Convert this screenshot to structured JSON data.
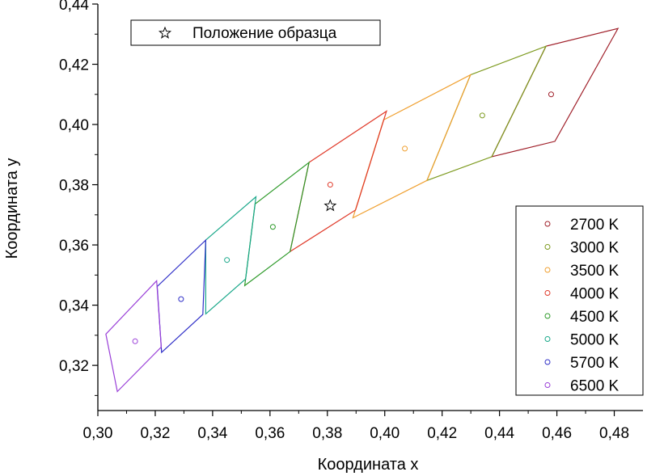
{
  "chart_data": {
    "type": "scatter",
    "xlabel": "Координата x",
    "ylabel": "Координата y",
    "xlim": [
      0.3,
      0.49
    ],
    "ylim": [
      0.305,
      0.44
    ],
    "x_ticks": [
      0.3,
      0.32,
      0.34,
      0.36,
      0.38,
      0.4,
      0.42,
      0.44,
      0.46,
      0.48
    ],
    "x_tick_labels": [
      "0,30",
      "0,32",
      "0,34",
      "0,36",
      "0,38",
      "0,40",
      "0,42",
      "0,44",
      "0,46",
      "0,48"
    ],
    "y_ticks": [
      0.32,
      0.34,
      0.36,
      0.38,
      0.4,
      0.42,
      0.44
    ],
    "y_tick_labels": [
      "0,32",
      "0,34",
      "0,36",
      "0,38",
      "0,40",
      "0,42",
      "0,44"
    ],
    "grid": false,
    "sample": {
      "name": "Положение образца",
      "marker": "star",
      "x": 0.381,
      "y": 0.373,
      "legend_position": "top-left"
    },
    "series_legend_position": "bottom-right",
    "series": [
      {
        "name": "2700 K",
        "color": "#a0202a",
        "center": [
          0.458,
          0.41
        ],
        "quadrangle": [
          [
            0.4373,
            0.3893
          ],
          [
            0.4593,
            0.3944
          ],
          [
            0.4813,
            0.4319
          ],
          [
            0.4562,
            0.426
          ]
        ]
      },
      {
        "name": "3000 K",
        "color": "#7d9a1f",
        "center": [
          0.434,
          0.403
        ],
        "quadrangle": [
          [
            0.4147,
            0.3814
          ],
          [
            0.4373,
            0.3893
          ],
          [
            0.4562,
            0.426
          ],
          [
            0.4299,
            0.4165
          ]
        ]
      },
      {
        "name": "3500 K",
        "color": "#f0a030",
        "center": [
          0.407,
          0.392
        ],
        "quadrangle": [
          [
            0.3889,
            0.369
          ],
          [
            0.4147,
            0.3814
          ],
          [
            0.4299,
            0.4165
          ],
          [
            0.3996,
            0.4015
          ]
        ]
      },
      {
        "name": "4000 K",
        "color": "#e03a2a",
        "center": [
          0.381,
          0.38
        ],
        "quadrangle": [
          [
            0.367,
            0.3578
          ],
          [
            0.3898,
            0.3716
          ],
          [
            0.4006,
            0.4044
          ],
          [
            0.3736,
            0.3874
          ]
        ]
      },
      {
        "name": "4500 K",
        "color": "#2e9a2a",
        "center": [
          0.361,
          0.366
        ],
        "quadrangle": [
          [
            0.3512,
            0.3465
          ],
          [
            0.367,
            0.3578
          ],
          [
            0.3736,
            0.3874
          ],
          [
            0.3548,
            0.3736
          ]
        ]
      },
      {
        "name": "5000 K",
        "color": "#1aa88a",
        "center": [
          0.345,
          0.355
        ],
        "quadrangle": [
          [
            0.3376,
            0.3371
          ],
          [
            0.3515,
            0.3487
          ],
          [
            0.3551,
            0.376
          ],
          [
            0.3376,
            0.3616
          ]
        ]
      },
      {
        "name": "5700 K",
        "color": "#3030c8",
        "center": [
          0.329,
          0.342
        ],
        "quadrangle": [
          [
            0.3222,
            0.3243
          ],
          [
            0.3366,
            0.3369
          ],
          [
            0.3376,
            0.3616
          ],
          [
            0.3207,
            0.3462
          ]
        ]
      },
      {
        "name": "6500 K",
        "color": "#9a40d8",
        "center": [
          0.313,
          0.328
        ],
        "quadrangle": [
          [
            0.3068,
            0.3113
          ],
          [
            0.3221,
            0.3261
          ],
          [
            0.3205,
            0.3481
          ],
          [
            0.3028,
            0.3304
          ]
        ]
      }
    ]
  }
}
